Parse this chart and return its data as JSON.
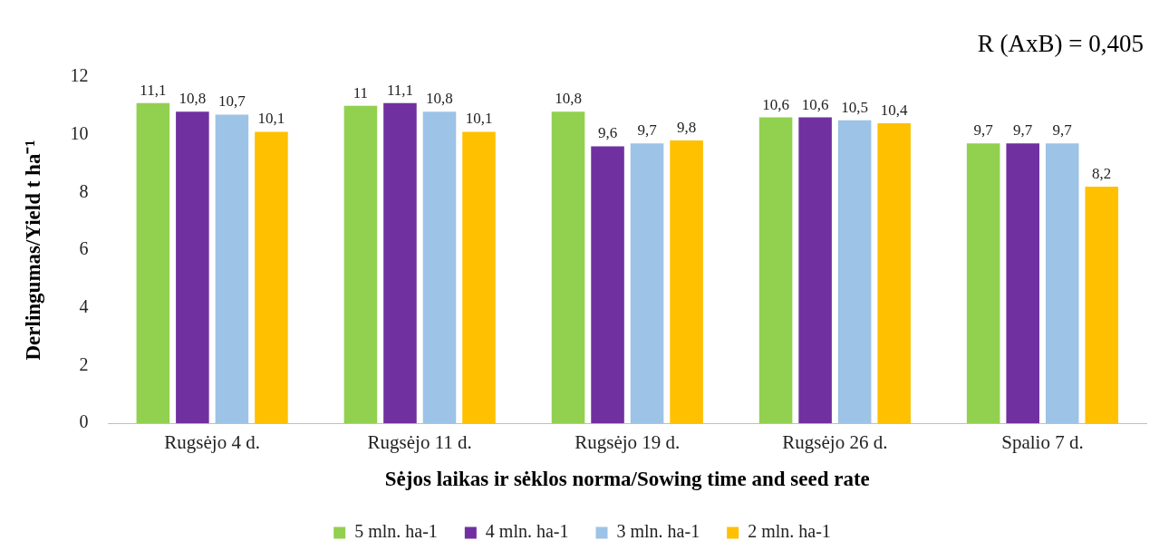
{
  "chart_data": {
    "type": "bar",
    "xlabel": "Sėjos laikas ir sėklos norma/Sowing time and seed rate",
    "ylabel": "Derlingumas/Yield t ha⁻¹",
    "annotations": [
      "R (AxB) = 0,405"
    ],
    "categories": [
      "Rugsėjo 4 d.",
      "Rugsėjo 11 d.",
      "Rugsėjo 19 d.",
      "Rugsėjo 26 d.",
      "Spalio 7 d."
    ],
    "series": [
      {
        "name": "5 mln. ha-1",
        "color": "#92d050",
        "values": [
          11.1,
          11,
          10.8,
          10.6,
          9.7
        ],
        "value_labels": [
          "11,1",
          "11",
          "10,8",
          "10,6",
          "9,7"
        ]
      },
      {
        "name": "4 mln. ha-1",
        "color": "#7030a0",
        "values": [
          10.8,
          11.1,
          9.6,
          10.6,
          9.7
        ],
        "value_labels": [
          "10,8",
          "11,1",
          "9,6",
          "10,6",
          "9,7"
        ]
      },
      {
        "name": "3 mln. ha-1",
        "color": "#9dc3e6",
        "values": [
          10.7,
          10.8,
          9.7,
          10.5,
          9.7
        ],
        "value_labels": [
          "10,7",
          "10,8",
          "9,7",
          "10,5",
          "9,7"
        ]
      },
      {
        "name": "2 mln. ha-1",
        "color": "#ffc000",
        "values": [
          10.1,
          10.1,
          9.8,
          10.4,
          8.2
        ],
        "value_labels": [
          "10,1",
          "10,1",
          "9,8",
          "10,4",
          "8,2"
        ]
      }
    ],
    "ylim": [
      0,
      12
    ],
    "yticks": [
      0,
      2,
      4,
      6,
      8,
      10,
      12
    ],
    "grid": false,
    "legend": "bottom"
  }
}
